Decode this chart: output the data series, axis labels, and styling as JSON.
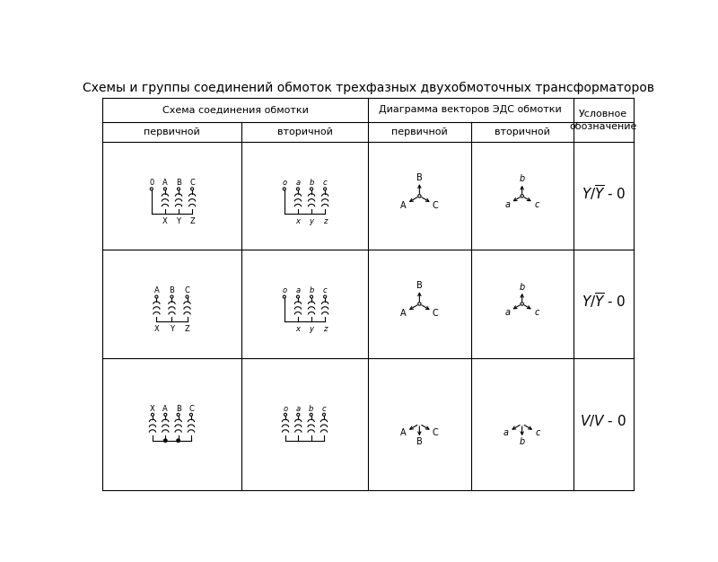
{
  "title": "Схемы и группы соединений обмоток трехфазных двухобмоточных трансформаторов",
  "title_fontsize": 10,
  "background_color": "#ffffff",
  "col_header1": "Схема соединения обмотки",
  "col_header2": "Диаграмма векторов ЭДС обмотки",
  "col_header3": "Условное\nобозначение",
  "sub_headers": [
    "первичной",
    "вторичной",
    "первичной",
    "вторичной"
  ],
  "row1_symbol": "Y/Y - 0",
  "row2_symbol": "Y/Y - 0",
  "row3_symbol": "V/V - 0"
}
